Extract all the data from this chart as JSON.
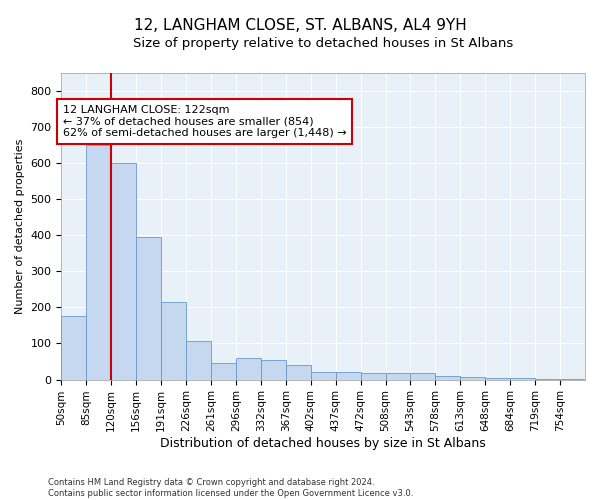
{
  "title": "12, LANGHAM CLOSE, ST. ALBANS, AL4 9YH",
  "subtitle": "Size of property relative to detached houses in St Albans",
  "xlabel": "Distribution of detached houses by size in St Albans",
  "ylabel": "Number of detached properties",
  "bar_color": "#c5d8f0",
  "bar_edge_color": "#6699cc",
  "background_color": "#e8f0f8",
  "grid_color": "#ffffff",
  "categories": [
    "50sqm",
    "85sqm",
    "120sqm",
    "156sqm",
    "191sqm",
    "226sqm",
    "261sqm",
    "296sqm",
    "332sqm",
    "367sqm",
    "402sqm",
    "437sqm",
    "472sqm",
    "508sqm",
    "543sqm",
    "578sqm",
    "613sqm",
    "648sqm",
    "684sqm",
    "719sqm",
    "754sqm"
  ],
  "values": [
    175,
    650,
    600,
    395,
    215,
    107,
    47,
    60,
    55,
    40,
    20,
    20,
    17,
    17,
    18,
    10,
    7,
    5,
    4,
    3,
    2
  ],
  "ylim": [
    0,
    850
  ],
  "yticks": [
    0,
    100,
    200,
    300,
    400,
    500,
    600,
    700,
    800
  ],
  "property_line_color": "#cc0000",
  "annotation_line1": "12 LANGHAM CLOSE: 122sqm",
  "annotation_line2": "← 37% of detached houses are smaller (854)",
  "annotation_line3": "62% of semi-detached houses are larger (1,448) →",
  "annotation_box_color": "#ffffff",
  "annotation_box_edge": "#cc0000",
  "footer": "Contains HM Land Registry data © Crown copyright and database right 2024.\nContains public sector information licensed under the Open Government Licence v3.0.",
  "title_fontsize": 11,
  "subtitle_fontsize": 9.5,
  "tick_fontsize": 7.5,
  "ylabel_fontsize": 8,
  "xlabel_fontsize": 9,
  "annotation_fontsize": 8,
  "footer_fontsize": 6
}
